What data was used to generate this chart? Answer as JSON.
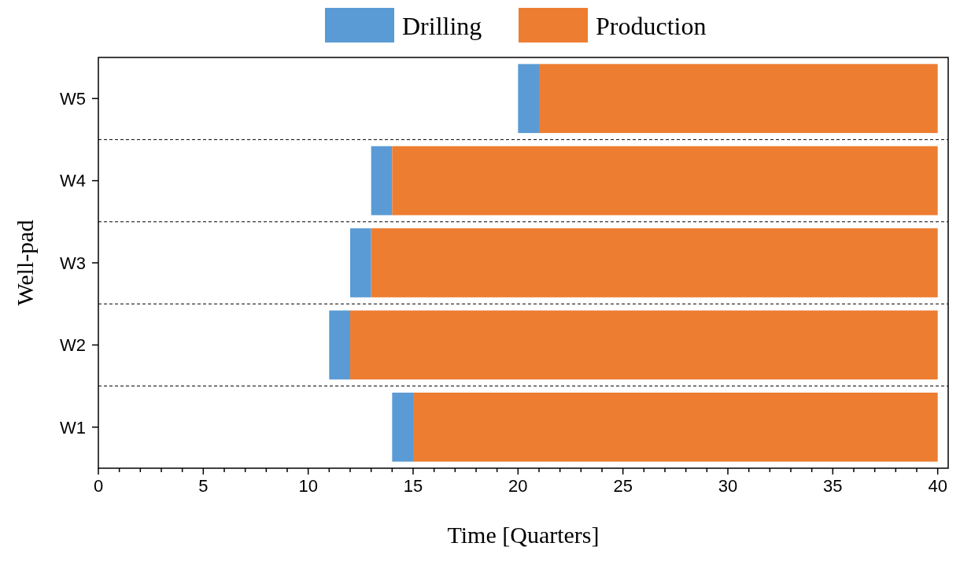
{
  "chart_data": {
    "type": "bar",
    "orientation": "horizontal",
    "xlabel": "Time [Quarters]",
    "ylabel": "Well-pad",
    "categories": [
      "W5",
      "W4",
      "W3",
      "W2",
      "W1"
    ],
    "series": [
      {
        "name": "Drilling",
        "color": "#5b9bd5",
        "base": [
          20,
          13,
          12,
          11,
          14
        ],
        "values": [
          1,
          1,
          1,
          1,
          1
        ]
      },
      {
        "name": "Production",
        "color": "#ed7d31",
        "base": [
          21,
          14,
          13,
          12,
          15
        ],
        "values": [
          19,
          26,
          27,
          28,
          25
        ]
      }
    ],
    "xlim": [
      0,
      40.5
    ],
    "xticks": [
      0,
      {
        "value": 1,
        "label": null
      },
      {
        "value": 2,
        "label": null
      },
      {
        "value": 3,
        "label": null
      },
      {
        "value": 4,
        "label": null
      },
      5,
      {
        "value": 6,
        "label": null
      },
      {
        "value": 7,
        "label": null
      },
      {
        "value": 8,
        "label": null
      },
      {
        "value": 9,
        "label": null
      },
      10,
      {
        "value": 11,
        "label": null
      },
      {
        "value": 12,
        "label": null
      },
      {
        "value": 13,
        "label": null
      },
      {
        "value": 14,
        "label": null
      },
      15,
      {
        "value": 16,
        "label": null
      },
      {
        "value": 17,
        "label": null
      },
      {
        "value": 18,
        "label": null
      },
      {
        "value": 19,
        "label": null
      },
      20,
      {
        "value": 21,
        "label": null
      },
      {
        "value": 22,
        "label": null
      },
      {
        "value": 23,
        "label": null
      },
      {
        "value": 24,
        "label": null
      },
      25,
      {
        "value": 26,
        "label": null
      },
      {
        "value": 27,
        "label": null
      },
      {
        "value": 28,
        "label": null
      },
      {
        "value": 29,
        "label": null
      },
      30,
      {
        "value": 31,
        "label": null
      },
      {
        "value": 32,
        "label": null
      },
      {
        "value": 33,
        "label": null
      },
      {
        "value": 34,
        "label": null
      },
      35,
      {
        "value": 36,
        "label": null
      },
      {
        "value": 37,
        "label": null
      },
      {
        "value": 38,
        "label": null
      },
      {
        "value": 39,
        "label": null
      },
      40
    ],
    "grid": "y",
    "legend": "top"
  }
}
